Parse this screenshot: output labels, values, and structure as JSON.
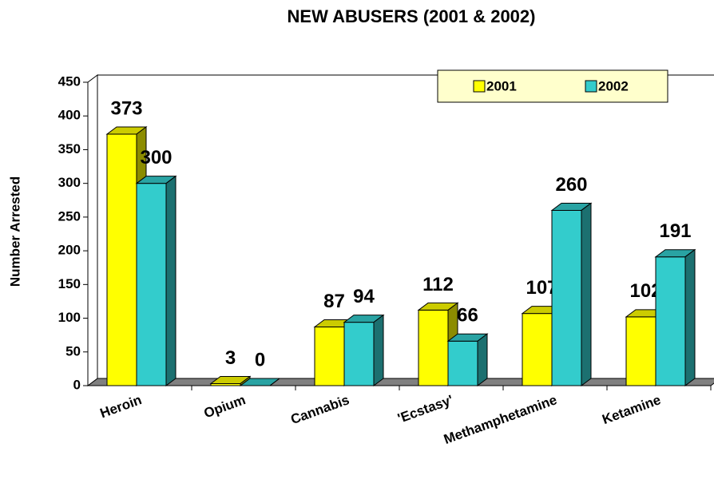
{
  "chart_data": {
    "type": "bar3d",
    "title": "NEW ABUSERS (2001 & 2002)",
    "y_label": "Number Arrested",
    "categories": [
      "Heroin",
      "Opium",
      "Cannabis",
      "'Ecstasy'",
      "Methamphetamine",
      "Ketamine"
    ],
    "series": [
      {
        "name": "2001",
        "color": "#ffff00",
        "values": [
          373,
          3,
          87,
          112,
          107,
          102
        ]
      },
      {
        "name": "2002",
        "color": "#33cccc",
        "values": [
          300,
          0,
          94,
          66,
          260,
          191
        ]
      }
    ],
    "ylim": [
      0,
      450
    ],
    "yticks": [
      0,
      50,
      100,
      150,
      200,
      250,
      300,
      350,
      400,
      450
    ],
    "legend": "top-right",
    "grid": false
  }
}
